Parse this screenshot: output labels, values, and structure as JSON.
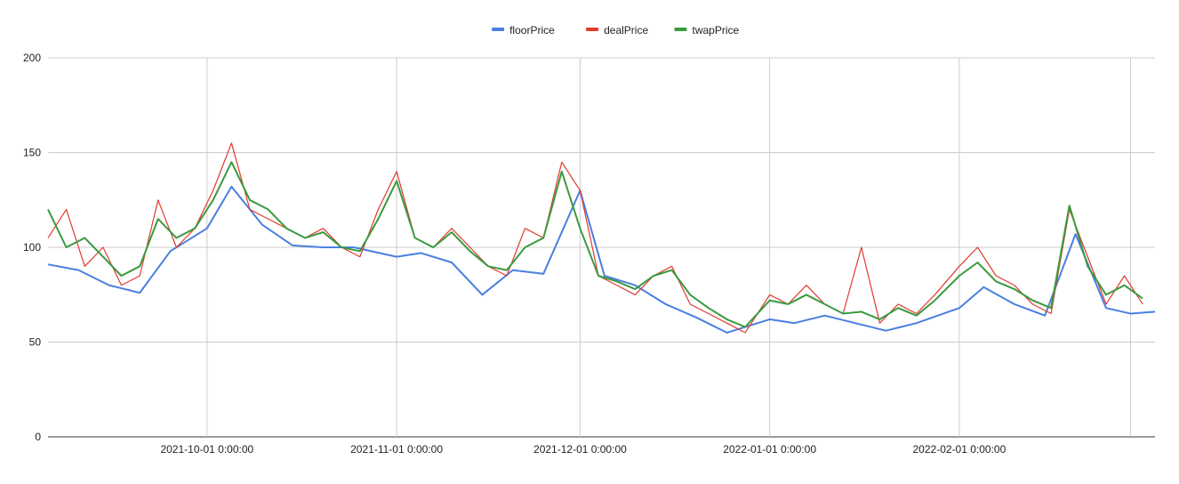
{
  "chart_data": {
    "type": "line",
    "title": "",
    "xlabel": "",
    "ylabel": "",
    "ylim": [
      0,
      200
    ],
    "grid": true,
    "legend_position": "top",
    "yticks": [
      0,
      50,
      100,
      150,
      200
    ],
    "ytick_labels": [
      "0",
      "50",
      "100",
      "150",
      "200"
    ],
    "xticks": [
      "2021-10-01",
      "2021-11-01",
      "2021-12-01",
      "2022-01-01",
      "2022-02-01",
      "2022-03-01"
    ],
    "xtick_labels": [
      "2021-10-01 0:00:00",
      "2021-11-01 0:00:00",
      "2021-12-01 0:00:00",
      "2022-01-01 0:00:00",
      "2022-02-01 0:00:00",
      ""
    ],
    "xlim": [
      "2021-09-05",
      "2022-03-05"
    ],
    "series": [
      {
        "name": "floorPrice",
        "color": "#4a7fe0",
        "x": [
          "2021-09-05",
          "2021-09-10",
          "2021-09-15",
          "2021-09-20",
          "2021-09-25",
          "2021-10-01",
          "2021-10-05",
          "2021-10-10",
          "2021-10-15",
          "2021-10-20",
          "2021-10-25",
          "2021-11-01",
          "2021-11-05",
          "2021-11-10",
          "2021-11-15",
          "2021-11-20",
          "2021-11-25",
          "2021-12-01",
          "2021-12-05",
          "2021-12-10",
          "2021-12-15",
          "2021-12-20",
          "2021-12-25",
          "2022-01-01",
          "2022-01-05",
          "2022-01-10",
          "2022-01-15",
          "2022-01-20",
          "2022-01-25",
          "2022-02-01",
          "2022-02-05",
          "2022-02-10",
          "2022-02-15",
          "2022-02-20",
          "2022-02-25",
          "2022-03-01",
          "2022-03-05"
        ],
        "values": [
          91,
          88,
          80,
          76,
          98,
          110,
          132,
          112,
          101,
          100,
          100,
          95,
          97,
          92,
          75,
          88,
          86,
          130,
          85,
          80,
          70,
          63,
          55,
          62,
          60,
          64,
          60,
          56,
          60,
          68,
          79,
          70,
          64,
          107,
          68,
          65,
          66
        ]
      },
      {
        "name": "dealPrice",
        "color": "#e03a2e",
        "x": [
          "2021-09-05",
          "2021-09-08",
          "2021-09-11",
          "2021-09-14",
          "2021-09-17",
          "2021-09-20",
          "2021-09-23",
          "2021-09-26",
          "2021-09-29",
          "2021-10-02",
          "2021-10-05",
          "2021-10-08",
          "2021-10-11",
          "2021-10-14",
          "2021-10-17",
          "2021-10-20",
          "2021-10-23",
          "2021-10-26",
          "2021-10-29",
          "2021-11-01",
          "2021-11-04",
          "2021-11-07",
          "2021-11-10",
          "2021-11-13",
          "2021-11-16",
          "2021-11-19",
          "2021-11-22",
          "2021-11-25",
          "2021-11-28",
          "2021-12-01",
          "2021-12-04",
          "2021-12-07",
          "2021-12-10",
          "2021-12-13",
          "2021-12-16",
          "2021-12-19",
          "2021-12-22",
          "2021-12-25",
          "2021-12-28",
          "2022-01-01",
          "2022-01-04",
          "2022-01-07",
          "2022-01-10",
          "2022-01-13",
          "2022-01-16",
          "2022-01-19",
          "2022-01-22",
          "2022-01-25",
          "2022-01-28",
          "2022-02-01",
          "2022-02-04",
          "2022-02-07",
          "2022-02-10",
          "2022-02-13",
          "2022-02-16",
          "2022-02-19",
          "2022-02-22",
          "2022-02-25",
          "2022-02-28",
          "2022-03-03"
        ],
        "values": [
          105,
          120,
          90,
          100,
          80,
          85,
          125,
          100,
          110,
          130,
          155,
          120,
          115,
          110,
          105,
          110,
          100,
          95,
          120,
          140,
          105,
          100,
          110,
          100,
          90,
          85,
          110,
          105,
          145,
          130,
          85,
          80,
          75,
          85,
          90,
          70,
          65,
          60,
          55,
          75,
          70,
          80,
          70,
          65,
          100,
          60,
          70,
          65,
          75,
          90,
          100,
          85,
          80,
          70,
          65,
          120,
          95,
          70,
          85,
          70
        ]
      },
      {
        "name": "twapPrice",
        "color": "#3a9a3f",
        "x": [
          "2021-09-05",
          "2021-09-08",
          "2021-09-11",
          "2021-09-14",
          "2021-09-17",
          "2021-09-20",
          "2021-09-23",
          "2021-09-26",
          "2021-09-29",
          "2021-10-02",
          "2021-10-05",
          "2021-10-08",
          "2021-10-11",
          "2021-10-14",
          "2021-10-17",
          "2021-10-20",
          "2021-10-23",
          "2021-10-26",
          "2021-10-29",
          "2021-11-01",
          "2021-11-04",
          "2021-11-07",
          "2021-11-10",
          "2021-11-13",
          "2021-11-16",
          "2021-11-19",
          "2021-11-22",
          "2021-11-25",
          "2021-11-28",
          "2021-12-01",
          "2021-12-04",
          "2021-12-07",
          "2021-12-10",
          "2021-12-13",
          "2021-12-16",
          "2021-12-19",
          "2021-12-22",
          "2021-12-25",
          "2021-12-28",
          "2022-01-01",
          "2022-01-04",
          "2022-01-07",
          "2022-01-10",
          "2022-01-13",
          "2022-01-16",
          "2022-01-19",
          "2022-01-22",
          "2022-01-25",
          "2022-01-28",
          "2022-02-01",
          "2022-02-04",
          "2022-02-07",
          "2022-02-10",
          "2022-02-13",
          "2022-02-16",
          "2022-02-19",
          "2022-02-22",
          "2022-02-25",
          "2022-02-28",
          "2022-03-03"
        ],
        "values": [
          120,
          100,
          105,
          95,
          85,
          90,
          115,
          105,
          110,
          125,
          145,
          125,
          120,
          110,
          105,
          108,
          100,
          98,
          115,
          135,
          105,
          100,
          108,
          98,
          90,
          88,
          100,
          105,
          140,
          110,
          85,
          82,
          78,
          85,
          88,
          75,
          68,
          62,
          58,
          72,
          70,
          75,
          70,
          65,
          66,
          62,
          68,
          64,
          72,
          85,
          92,
          82,
          78,
          72,
          68,
          122,
          90,
          75,
          80,
          73
        ]
      }
    ]
  }
}
